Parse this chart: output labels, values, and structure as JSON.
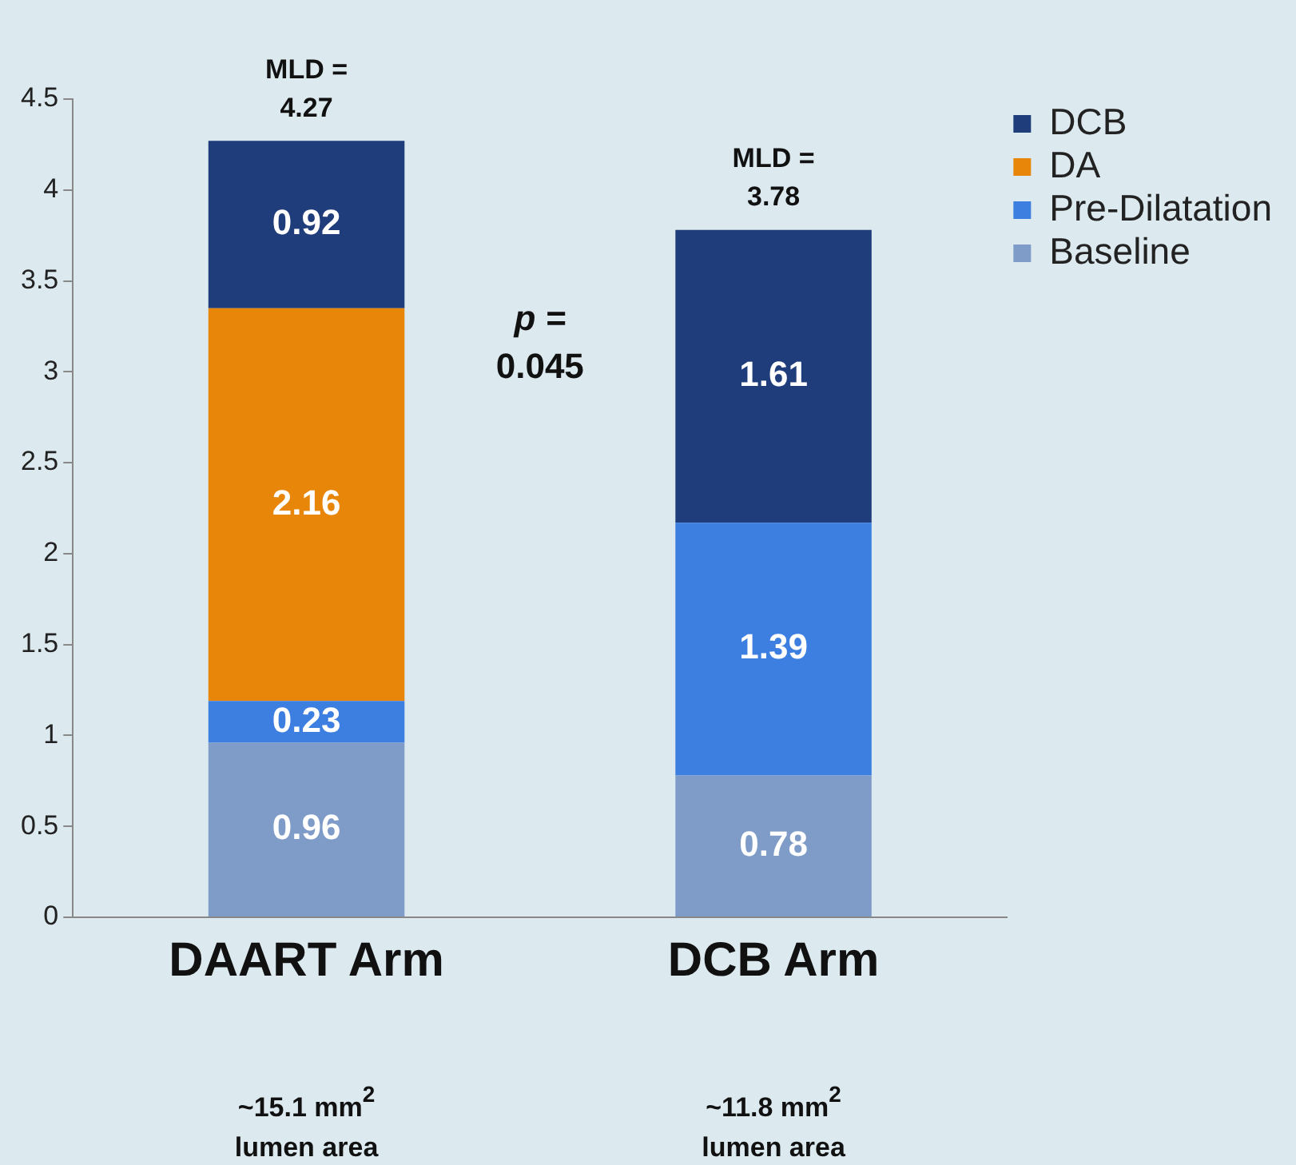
{
  "chart_data": {
    "type": "bar",
    "stacked": true,
    "categories": [
      "DAART Arm",
      "DCB Arm"
    ],
    "series": [
      {
        "name": "Baseline",
        "color": "#7f9cc8",
        "values": [
          0.96,
          0.78
        ]
      },
      {
        "name": "Pre-Dilatation",
        "color": "#3d7fe0",
        "values": [
          0.23,
          1.39
        ]
      },
      {
        "name": "DA",
        "color": "#e8860a",
        "values": [
          2.16,
          null
        ]
      },
      {
        "name": "DCB",
        "color": "#1f3d7a",
        "values": [
          0.92,
          1.61
        ]
      }
    ],
    "ylim": [
      0,
      4.5
    ],
    "yticks": [
      0,
      0.5,
      1,
      1.5,
      2,
      2.5,
      3,
      3.5,
      4,
      4.5
    ],
    "grid": false,
    "legend": "top right",
    "data_labels": true,
    "totals": [
      "MLD = 4.27",
      "MLD = 3.78"
    ],
    "annotations": [
      "p = 0.045",
      "~15.1 mm$^{2}$ lumen area",
      "~11.8 mm$^{2}$ lumen area"
    ]
  }
}
